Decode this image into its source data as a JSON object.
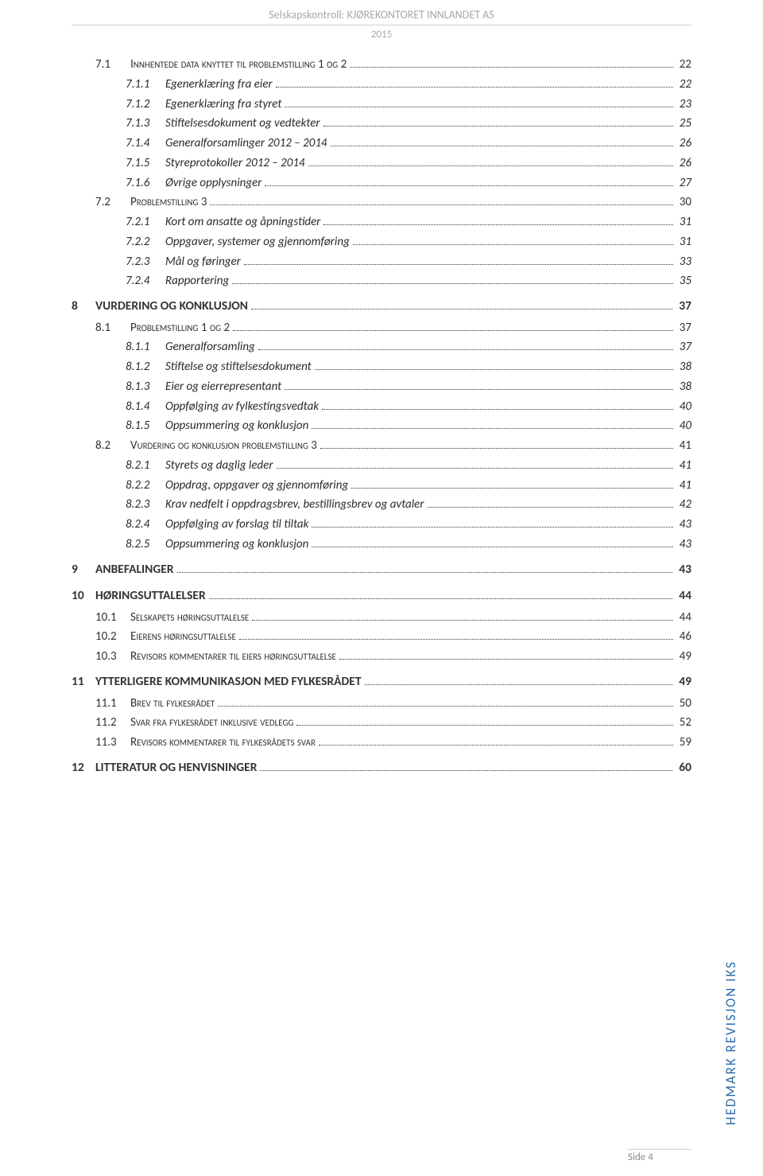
{
  "header": {
    "title": "Selskapskontroll: KJØREKONTORET INNLANDET AS",
    "year": "2015"
  },
  "toc": [
    {
      "level": 1,
      "num": "7.1",
      "text": "Innhentede data knyttet til problemstilling 1 og 2",
      "page": "22"
    },
    {
      "level": 2,
      "num": "7.1.1",
      "text": "Egenerklæring fra eier",
      "page": "22"
    },
    {
      "level": 2,
      "num": "7.1.2",
      "text": "Egenerklæring fra styret",
      "page": "23"
    },
    {
      "level": 2,
      "num": "7.1.3",
      "text": "Stiftelsesdokument og vedtekter",
      "page": "25"
    },
    {
      "level": 2,
      "num": "7.1.4",
      "text": "Generalforsamlinger 2012 – 2014",
      "page": "26"
    },
    {
      "level": 2,
      "num": "7.1.5",
      "text": "Styreprotokoller 2012 – 2014",
      "page": "26"
    },
    {
      "level": 2,
      "num": "7.1.6",
      "text": "Øvrige opplysninger",
      "page": "27"
    },
    {
      "level": 1,
      "num": "7.2",
      "text": "Problemstilling 3",
      "page": "30"
    },
    {
      "level": 2,
      "num": "7.2.1",
      "text": "Kort om ansatte og åpningstider",
      "page": "31"
    },
    {
      "level": 2,
      "num": "7.2.2",
      "text": "Oppgaver, systemer og gjennomføring",
      "page": "31"
    },
    {
      "level": 2,
      "num": "7.2.3",
      "text": "Mål og føringer",
      "page": "33"
    },
    {
      "level": 2,
      "num": "7.2.4",
      "text": "Rapportering",
      "page": "35"
    },
    {
      "level": 0,
      "num": "8",
      "text": "VURDERING OG KONKLUSJON",
      "page": "37"
    },
    {
      "level": 1,
      "num": "8.1",
      "text": "Problemstilling 1 og 2",
      "page": "37"
    },
    {
      "level": 2,
      "num": "8.1.1",
      "text": "Generalforsamling",
      "page": "37"
    },
    {
      "level": 2,
      "num": "8.1.2",
      "text": "Stiftelse og stiftelsesdokument",
      "page": "38"
    },
    {
      "level": 2,
      "num": "8.1.3",
      "text": "Eier og eierrepresentant",
      "page": "38"
    },
    {
      "level": 2,
      "num": "8.1.4",
      "text": "Oppfølging av fylkestingsvedtak",
      "page": "40"
    },
    {
      "level": 2,
      "num": "8.1.5",
      "text": "Oppsummering og konklusjon",
      "page": "40"
    },
    {
      "level": 1,
      "num": "8.2",
      "text": "Vurdering og konklusjon problemstilling 3",
      "page": "41"
    },
    {
      "level": 2,
      "num": "8.2.1",
      "text": "Styrets og daglig leder",
      "page": "41"
    },
    {
      "level": 2,
      "num": "8.2.2",
      "text": "Oppdrag, oppgaver og gjennomføring",
      "page": "41"
    },
    {
      "level": 2,
      "num": "8.2.3",
      "text": "Krav nedfelt i oppdragsbrev, bestillingsbrev og avtaler",
      "page": "42"
    },
    {
      "level": 2,
      "num": "8.2.4",
      "text": "Oppfølging av forslag til tiltak",
      "page": "43"
    },
    {
      "level": 2,
      "num": "8.2.5",
      "text": "Oppsummering og konklusjon",
      "page": "43"
    },
    {
      "level": 0,
      "num": "9",
      "text": "ANBEFALINGER",
      "page": "43"
    },
    {
      "level": 0,
      "num": "10",
      "text": "HØRINGSUTTALELSER",
      "page": "44"
    },
    {
      "level": 1,
      "num": "10.1",
      "text": "Selskapets høringsuttalelse",
      "page": "44"
    },
    {
      "level": 1,
      "num": "10.2",
      "text": "Eierens høringsuttalelse",
      "page": "46"
    },
    {
      "level": 1,
      "num": "10.3",
      "text": "Revisors kommentarer til eiers høringsuttalelse",
      "page": "49"
    },
    {
      "level": 0,
      "num": "11",
      "text": "YTTERLIGERE KOMMUNIKASJON MED FYLKESRÅDET",
      "page": "49"
    },
    {
      "level": 1,
      "num": "11.1",
      "text": "Brev til fylkesrådet",
      "page": "50"
    },
    {
      "level": 1,
      "num": "11.2",
      "text": "Svar fra fylkesrådet inklusive vedlegg",
      "page": "52"
    },
    {
      "level": 1,
      "num": "11.3",
      "text": "Revisors kommentarer til fylkesrådets svar",
      "page": "59"
    },
    {
      "level": 0,
      "num": "12",
      "text": "LITTERATUR OG HENVISNINGER",
      "page": "60"
    }
  ],
  "footer": {
    "pageLabel": "Side 4"
  },
  "sideText": "HEDMARK REVISJON IKS"
}
